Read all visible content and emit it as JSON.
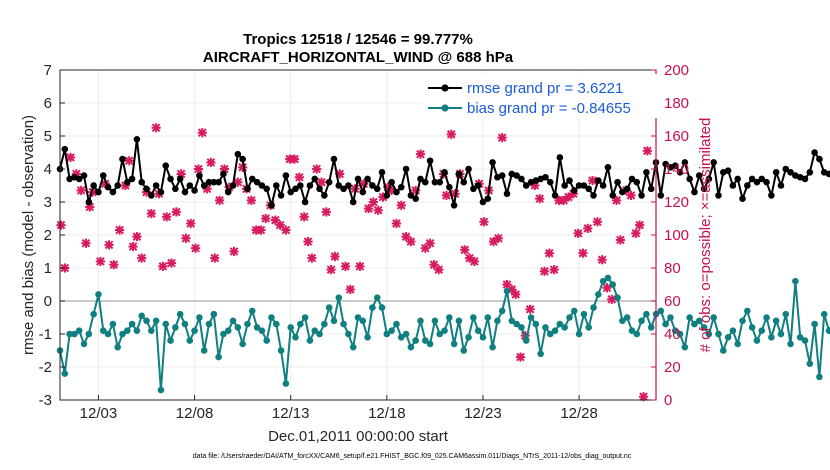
{
  "chart_data": {
    "type": "line",
    "title_line1": "Tropics 12518 / 12546 = 99.777%",
    "title_line2": "AIRCRAFT_HORIZONTAL_WIND @ 688 hPa",
    "ylabel": "rmse and bias (model - observation)",
    "ylabel_right": "# of obs: o=possible; ×=assimilated",
    "xlabel": "Dec.01,2011 00:00:00 start",
    "footnote": "data file: /Users/raeder/DAI/ATM_forcXX/CAM6_setup/f.e21.FHIST_BGC.f09_025.CAM6assim.011/Diags_NTrS_2011-12/obs_diag_output.nc",
    "xlim": [
      1.0,
      32.0
    ],
    "ylim": [
      -3,
      7
    ],
    "ylim_right": [
      0,
      200
    ],
    "x_ticks": [
      3,
      8,
      13,
      18,
      23,
      28
    ],
    "x_tick_labels": [
      "12/03",
      "12/08",
      "12/13",
      "12/18",
      "12/23",
      "12/28"
    ],
    "y_ticks": [
      -3,
      -2,
      -1,
      0,
      1,
      2,
      3,
      4,
      5,
      6,
      7
    ],
    "y_ticks_right": [
      0,
      20,
      40,
      60,
      80,
      100,
      120,
      140,
      160,
      180,
      200
    ],
    "grid": true,
    "legend_position": "top-right",
    "colors": {
      "rmse": "#000000",
      "bias": "#0f7f80",
      "obs": "#d81b60",
      "zero_line": "#b8b8b8",
      "grid": "#ececec",
      "right_axis": "#c8104f"
    },
    "series": [
      {
        "name": "rmse grand pr = 3.6221",
        "values": [
          4.0,
          4.6,
          3.7,
          3.75,
          3.7,
          3.8,
          3.0,
          3.5,
          3.3,
          3.8,
          3.45,
          3.3,
          3.5,
          4.3,
          3.6,
          3.7,
          4.9,
          3.6,
          3.4,
          3.2,
          3.5,
          3.3,
          4.1,
          3.7,
          3.4,
          3.7,
          3.3,
          3.5,
          3.35,
          3.8,
          3.5,
          3.6,
          3.6,
          3.6,
          3.85,
          3.3,
          3.5,
          4.45,
          4.3,
          3.4,
          3.7,
          3.6,
          3.5,
          3.4,
          2.9,
          3.5,
          3.2,
          3.8,
          3.3,
          3.4,
          3.5,
          3.0,
          3.5,
          3.7,
          3.4,
          3.2,
          3.6,
          4.3,
          3.5,
          3.4,
          3.5,
          3.0,
          3.7,
          3.3,
          3.7,
          3.5,
          3.4,
          3.9,
          3.2,
          3.6,
          3.3,
          3.45,
          4.0,
          3.2,
          3.1,
          3.7,
          3.6,
          4.25,
          3.6,
          3.6,
          3.9,
          3.45,
          2.9,
          3.85,
          3.6,
          4.0,
          3.4,
          3.5,
          3.0,
          3.1,
          4.2,
          3.75,
          3.8,
          3.25,
          3.85,
          3.8,
          3.7,
          3.5,
          3.6,
          3.65,
          3.7,
          3.75,
          3.6,
          3.2,
          4.35,
          3.5,
          3.65,
          3.35,
          3.5,
          3.5,
          3.4,
          3.2,
          3.65,
          3.5,
          4.05,
          3.2,
          3.6,
          3.3,
          3.4,
          3.7,
          3.6,
          3.2,
          3.9,
          3.4,
          4.2,
          3.2,
          4.15,
          4.05,
          4.1,
          3.9,
          4.2,
          3.7,
          3.3,
          3.8,
          3.4,
          3.7,
          4.2,
          3.2,
          3.9,
          3.95,
          3.5,
          3.7,
          3.1,
          3.5,
          3.7,
          3.6,
          3.7,
          3.6,
          3.2,
          3.9,
          3.5,
          4.0,
          3.9,
          3.8,
          3.75,
          3.7,
          3.9,
          4.5,
          4.3,
          3.9,
          3.85,
          3.6,
          3.5,
          3.7,
          4.0,
          3.8,
          4.1,
          3.75,
          3.8,
          3.6,
          3.3,
          4.5,
          3.7
        ],
        "color": "#000000"
      },
      {
        "name": "bias grand pr = -0.84655",
        "values": [
          -1.5,
          -2.2,
          -1.0,
          -1.0,
          -0.9,
          -1.3,
          -1.0,
          -0.4,
          0.2,
          -0.9,
          -1.0,
          -0.7,
          -1.4,
          -1.0,
          -0.9,
          -0.7,
          -0.9,
          -0.45,
          -0.6,
          -0.9,
          -0.6,
          -2.7,
          -0.7,
          -1.2,
          -0.8,
          -0.4,
          -0.7,
          -1.2,
          -0.9,
          -0.5,
          -1.5,
          -0.7,
          -0.4,
          -1.7,
          -1.0,
          -0.9,
          -0.6,
          -0.8,
          -1.3,
          -0.7,
          -0.3,
          -0.8,
          -0.9,
          -1.2,
          -0.5,
          -0.7,
          -1.5,
          -2.5,
          -0.8,
          -1.1,
          -0.7,
          -0.5,
          -1.2,
          -0.9,
          -1.0,
          -0.7,
          -0.2,
          -0.6,
          0.1,
          -0.7,
          -1.0,
          -1.4,
          -0.5,
          -0.6,
          -1.1,
          -0.2,
          0.1,
          -0.2,
          -1.0,
          -0.9,
          -0.7,
          -1.1,
          -1.0,
          -1.4,
          -1.2,
          -0.6,
          -1.2,
          -1.3,
          -0.6,
          -1.0,
          -0.9,
          -0.5,
          -1.3,
          -0.6,
          -1.5,
          -1.1,
          -0.5,
          -0.9,
          -1.1,
          -0.5,
          -1.4,
          -0.6,
          -0.3,
          0.3,
          -0.6,
          -0.7,
          -0.8,
          -1.2,
          -0.5,
          -0.7,
          -1.6,
          -0.8,
          -1.0,
          -0.9,
          -0.7,
          -0.8,
          -0.5,
          -0.3,
          -1.0,
          -0.4,
          -0.8,
          -0.2,
          0.2,
          0.6,
          0.7,
          0.5,
          0.1,
          -0.6,
          -0.5,
          -0.9,
          -1.0,
          -0.6,
          -0.4,
          -0.8,
          -0.4,
          -0.3,
          -0.7,
          -0.5,
          -0.9,
          -1.0,
          -1.4,
          -0.5,
          -0.7,
          -0.6,
          -0.8,
          -1.0,
          -0.5,
          -1.0,
          -1.5,
          -1.1,
          -0.9,
          -1.3,
          -0.6,
          -0.3,
          -0.8,
          -1.2,
          -0.9,
          -0.5,
          -1.1,
          -0.6,
          -1.0,
          -0.4,
          -1.3,
          0.6,
          -1.1,
          -1.2,
          -1.9,
          -0.7,
          -2.3,
          -0.4,
          -0.9,
          -0.6,
          -0.5,
          -0.2,
          -0.6,
          -0.5,
          -0.8,
          -0.9,
          -0.6,
          -0.5,
          -0.3,
          -1.4,
          -1.2,
          -0.8,
          -1.1,
          -0.4,
          -0.3,
          -1.1,
          -0.4,
          -0.8,
          -1.3,
          -0.8,
          -0.7,
          -0.6,
          -1.1,
          -0.7,
          -0.3,
          -1.3,
          -0.6,
          -0.5
        ],
        "color": "#0f7f80"
      }
    ],
    "obs_points": [
      [
        1.05,
        106
      ],
      [
        1.25,
        80
      ],
      [
        1.55,
        147
      ],
      [
        1.85,
        137
      ],
      [
        2.1,
        127
      ],
      [
        2.35,
        95
      ],
      [
        2.55,
        117
      ],
      [
        2.7,
        126
      ],
      [
        3.1,
        84
      ],
      [
        3.35,
        131
      ],
      [
        3.55,
        94
      ],
      [
        3.8,
        82
      ],
      [
        4.1,
        103
      ],
      [
        4.4,
        130
      ],
      [
        4.6,
        145
      ],
      [
        4.8,
        93
      ],
      [
        5.0,
        99
      ],
      [
        5.25,
        86
      ],
      [
        5.5,
        126
      ],
      [
        5.75,
        113
      ],
      [
        6.0,
        165
      ],
      [
        6.15,
        125
      ],
      [
        6.35,
        81
      ],
      [
        6.55,
        111
      ],
      [
        6.8,
        83
      ],
      [
        7.05,
        114
      ],
      [
        7.3,
        137
      ],
      [
        7.55,
        98
      ],
      [
        7.8,
        107
      ],
      [
        8.05,
        92
      ],
      [
        8.2,
        140
      ],
      [
        8.4,
        162
      ],
      [
        8.65,
        128
      ],
      [
        8.85,
        144
      ],
      [
        9.05,
        86
      ],
      [
        9.3,
        121
      ],
      [
        9.55,
        140
      ],
      [
        9.8,
        129
      ],
      [
        10.05,
        90
      ],
      [
        10.25,
        132
      ],
      [
        10.5,
        141
      ],
      [
        10.7,
        128
      ],
      [
        10.95,
        121
      ],
      [
        11.2,
        103
      ],
      [
        11.45,
        103
      ],
      [
        11.7,
        110
      ],
      [
        11.95,
        118
      ],
      [
        12.2,
        109
      ],
      [
        12.45,
        106
      ],
      [
        12.75,
        103
      ],
      [
        12.95,
        146
      ],
      [
        13.2,
        146
      ],
      [
        13.45,
        135
      ],
      [
        13.7,
        111
      ],
      [
        13.9,
        96
      ],
      [
        14.1,
        86
      ],
      [
        14.35,
        140
      ],
      [
        14.6,
        132
      ],
      [
        14.85,
        114
      ],
      [
        15.1,
        79
      ],
      [
        15.3,
        87
      ],
      [
        15.55,
        137
      ],
      [
        15.85,
        81
      ],
      [
        16.1,
        67
      ],
      [
        16.35,
        128
      ],
      [
        16.6,
        81
      ],
      [
        16.8,
        131
      ],
      [
        17.05,
        116
      ],
      [
        17.3,
        120
      ],
      [
        17.55,
        115
      ],
      [
        17.8,
        123
      ],
      [
        18.05,
        129
      ],
      [
        18.25,
        127
      ],
      [
        18.5,
        107
      ],
      [
        18.75,
        118
      ],
      [
        19.0,
        99
      ],
      [
        19.25,
        96
      ],
      [
        19.5,
        127
      ],
      [
        19.75,
        149
      ],
      [
        20.0,
        92
      ],
      [
        20.25,
        95
      ],
      [
        20.45,
        82
      ],
      [
        20.7,
        79
      ],
      [
        20.95,
        137
      ],
      [
        21.1,
        124
      ],
      [
        21.35,
        161
      ],
      [
        21.55,
        125
      ],
      [
        21.8,
        137
      ],
      [
        22.05,
        91
      ],
      [
        22.3,
        86
      ],
      [
        22.55,
        84
      ],
      [
        22.8,
        131
      ],
      [
        23.05,
        108
      ],
      [
        23.3,
        127
      ],
      [
        23.55,
        96
      ],
      [
        23.8,
        98
      ],
      [
        24.0,
        159
      ],
      [
        24.25,
        70
      ],
      [
        24.5,
        67
      ],
      [
        24.7,
        64
      ],
      [
        24.95,
        26
      ],
      [
        25.2,
        39
      ],
      [
        25.45,
        55
      ],
      [
        25.7,
        130
      ],
      [
        25.95,
        122
      ],
      [
        26.2,
        78
      ],
      [
        26.45,
        89
      ],
      [
        26.7,
        79
      ],
      [
        26.95,
        121
      ],
      [
        27.2,
        121
      ],
      [
        27.45,
        123
      ],
      [
        27.7,
        125
      ],
      [
        27.95,
        101
      ],
      [
        28.2,
        89
      ],
      [
        28.45,
        104
      ],
      [
        28.7,
        133
      ],
      [
        28.95,
        108
      ],
      [
        29.2,
        85
      ],
      [
        29.45,
        68
      ],
      [
        29.7,
        61
      ],
      [
        29.95,
        121
      ],
      [
        30.15,
        97
      ],
      [
        30.45,
        127
      ],
      [
        30.7,
        124
      ],
      [
        30.95,
        101
      ],
      [
        31.15,
        106
      ],
      [
        31.35,
        2
      ],
      [
        31.55,
        151
      ]
    ]
  }
}
